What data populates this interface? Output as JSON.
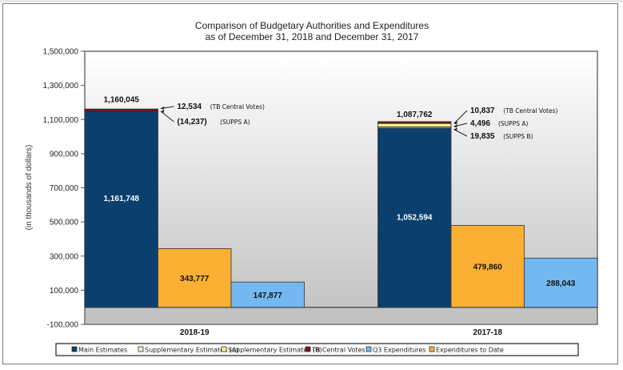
{
  "chart_data": {
    "type": "bar",
    "title": "Comparison of Budgetary Authorities and Expenditures",
    "subtitle": "as of December 31, 2018 and December 31, 2017",
    "xlabel": "",
    "ylabel": "(in thousands of dollars)",
    "ylim": [
      -100000,
      1500000
    ],
    "yticks": [
      -100000,
      100000,
      300000,
      500000,
      700000,
      900000,
      1100000,
      1300000,
      1500000
    ],
    "ytick_labels": [
      "-100,000",
      "100,000",
      "300,000",
      "500,000",
      "700,000",
      "900,000",
      "1,100,000",
      "1,300,000",
      "1,500,000"
    ],
    "grid": false,
    "legend_position": "bottom",
    "categories": [
      "2018-19",
      "2017-18"
    ],
    "series": [
      {
        "name": "Main Estimates",
        "color": "#0b3f6e",
        "stack": "authorities",
        "values": [
          1161748,
          1052594
        ],
        "labels": [
          "1,161,748",
          "1,052,594"
        ],
        "label_color": "#ffffff"
      },
      {
        "name": "Supplementary Estimates (A)",
        "color": "#f5f0c8",
        "stack": "authorities",
        "values": [
          -14237,
          4496
        ],
        "labels": [
          "(14,237)",
          "4,496"
        ]
      },
      {
        "name": "Supplementary Estimates (B)",
        "color": "#fbf18a",
        "stack": "authorities",
        "values": [
          0,
          19835
        ],
        "labels": [
          "",
          "19,835"
        ]
      },
      {
        "name": "TB Central Votes",
        "color": "#7a1010",
        "stack": "authorities",
        "values": [
          12534,
          10837
        ],
        "labels": [
          "12,534",
          "10,837"
        ]
      },
      {
        "name": "Q3 Expenditures",
        "color": "#74b8f2",
        "stack": "q3",
        "values": [
          147877,
          288043
        ],
        "labels": [
          "147,877",
          "288,043"
        ],
        "label_color": "#111111"
      },
      {
        "name": "Expenditures to Date",
        "color": "#fbb034",
        "stack": "todate",
        "values": [
          343777,
          479860
        ],
        "labels": [
          "343,777",
          "479,860"
        ],
        "label_color": "#111111"
      }
    ],
    "totals": [
      {
        "category": "2018-19",
        "value": 1160045,
        "label": "1,160,045"
      },
      {
        "category": "2017-18",
        "value": 1087762,
        "label": "1,087,762"
      }
    ],
    "bar_order": [
      "authorities",
      "todate",
      "q3"
    ],
    "annotations": [
      {
        "category": "2018-19",
        "value": "12,534",
        "note": "(TB Central Votes)"
      },
      {
        "category": "2018-19",
        "value": "(14,237)",
        "note": "(SUPPS A)"
      },
      {
        "category": "2017-18",
        "value": "10,837",
        "note": "(TB Central Votes)"
      },
      {
        "category": "2017-18",
        "value": "4,496",
        "note": "(SUPPS A)"
      },
      {
        "category": "2017-18",
        "value": "19,835",
        "note": "(SUPPS B)"
      }
    ],
    "legend": [
      "Main Estimates",
      "Supplementary Estimates (A)",
      "Supplementary Estimates (B)",
      "TB Central Votes",
      "Q3 Expenditures",
      "Expenditures to Date"
    ]
  }
}
